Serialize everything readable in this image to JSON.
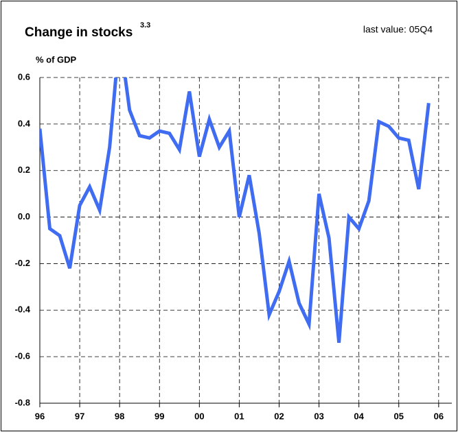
{
  "chart_data": {
    "type": "line",
    "title": "Change in stocks",
    "title_note": "3.3",
    "annotation": "last value: 05Q4",
    "y_label": "% of GDP",
    "x": [
      1996,
      1996.25,
      1996.5,
      1996.75,
      1997,
      1997.25,
      1997.5,
      1997.75,
      1998,
      1998.25,
      1998.5,
      1998.75,
      1999,
      1999.25,
      1999.5,
      1999.75,
      2000,
      2000.25,
      2000.5,
      2000.75,
      2001,
      2001.25,
      2001.5,
      2001.75,
      2002,
      2002.25,
      2002.5,
      2002.75,
      2003,
      2003.25,
      2003.5,
      2003.75,
      2004,
      2004.25,
      2004.5,
      2004.75,
      2005,
      2005.25,
      2005.5,
      2005.75
    ],
    "series": [
      {
        "color": "#3f6cf0",
        "values": [
          0.38,
          -0.05,
          -0.08,
          -0.22,
          0.05,
          0.13,
          0.03,
          0.3,
          0.78,
          0.46,
          0.35,
          0.34,
          0.37,
          0.36,
          0.29,
          0.54,
          0.26,
          0.42,
          0.3,
          0.37,
          0.0,
          0.18,
          -0.07,
          -0.42,
          -0.32,
          -0.19,
          -0.37,
          -0.46,
          0.1,
          -0.09,
          -0.54,
          0.0,
          -0.05,
          0.07,
          0.41,
          0.39,
          0.34,
          0.33,
          0.12,
          0.49
        ]
      }
    ],
    "xlim": [
      1996,
      2006.33
    ],
    "xticks": [
      {
        "value": 1996,
        "label": "96"
      },
      {
        "value": 1997,
        "label": "97"
      },
      {
        "value": 1998,
        "label": "98"
      },
      {
        "value": 1999,
        "label": "99"
      },
      {
        "value": 2000,
        "label": "00"
      },
      {
        "value": 2001,
        "label": "01"
      },
      {
        "value": 2002,
        "label": "02"
      },
      {
        "value": 2003,
        "label": "03"
      },
      {
        "value": 2004,
        "label": "04"
      },
      {
        "value": 2005,
        "label": "05"
      },
      {
        "value": 2006,
        "label": "06"
      }
    ],
    "ylim": [
      -0.8,
      0.6
    ],
    "yticks": [
      0.6,
      0.4,
      0.2,
      {
        "value": 0,
        "label": "0.0"
      },
      -0.2,
      -0.4,
      -0.6,
      -0.8
    ],
    "grid": true
  }
}
